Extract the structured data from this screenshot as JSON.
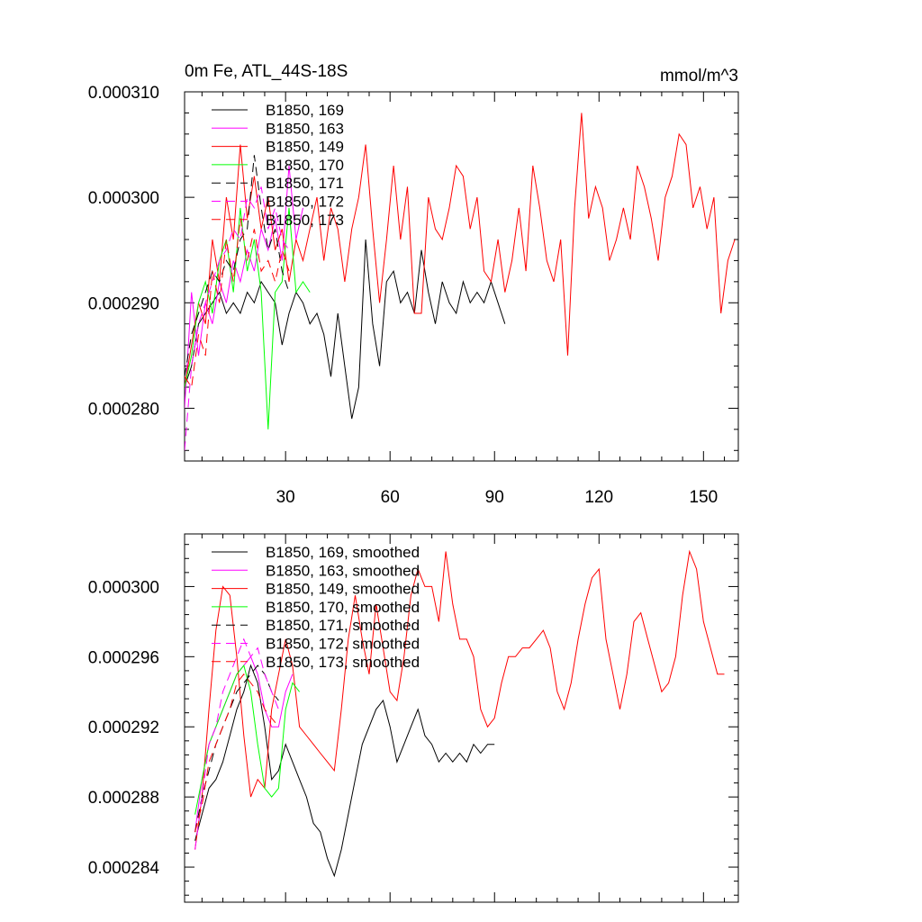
{
  "chart_data": [
    {
      "type": "line",
      "title": "0m Fe, ATL_44S-18S",
      "units": "mmol/m^3",
      "xlabel": "",
      "ylabel": "",
      "xlim": [
        1,
        160
      ],
      "ylim": [
        0.000275,
        0.00031
      ],
      "xticks": [
        30,
        60,
        90,
        120,
        150
      ],
      "xtick_labels": [
        "30",
        "60",
        "90",
        "120",
        "150"
      ],
      "yticks": [
        0.00028,
        0.00029,
        0.0003,
        0.00031
      ],
      "ytick_labels": [
        "0.000280",
        "0.000290",
        "0.000300",
        "0.000310"
      ],
      "legend_position": "top-left",
      "series": [
        {
          "name": "B1850, 169",
          "color": "#000000",
          "dash": "solid",
          "x": [
            1,
            3,
            5,
            7,
            9,
            11,
            13,
            15,
            17,
            19,
            21,
            23,
            25,
            27,
            29,
            31,
            33,
            35,
            37,
            39,
            41,
            43,
            45,
            47,
            49,
            51,
            53,
            55,
            57,
            59,
            61,
            63,
            65,
            67,
            69,
            71,
            73,
            75,
            77,
            79,
            81,
            83,
            85,
            87,
            89,
            91,
            93
          ],
          "values": [
            0.000282,
            0.000284,
            0.000288,
            0.000289,
            0.00029,
            0.000291,
            0.000289,
            0.00029,
            0.000289,
            0.000291,
            0.00029,
            0.000292,
            0.000291,
            0.00029,
            0.000286,
            0.000289,
            0.000291,
            0.00029,
            0.000288,
            0.000289,
            0.000287,
            0.000283,
            0.000289,
            0.000284,
            0.000279,
            0.000282,
            0.000296,
            0.000288,
            0.000284,
            0.000292,
            0.000293,
            0.00029,
            0.000291,
            0.000289,
            0.000295,
            0.000291,
            0.000288,
            0.000292,
            0.00029,
            0.000289,
            0.000292,
            0.00029,
            0.000291,
            0.00029,
            0.000292,
            0.00029,
            0.000288
          ]
        },
        {
          "name": "B1850, 163",
          "color": "#ff00ff",
          "dash": "solid",
          "x": [
            1,
            3,
            5,
            7,
            9,
            11,
            13,
            15,
            17,
            19,
            21,
            23,
            25,
            27,
            29,
            31,
            33,
            35
          ],
          "values": [
            0.00028,
            0.000291,
            0.000285,
            0.00029,
            0.000288,
            0.000292,
            0.00029,
            0.000294,
            0.000292,
            0.000295,
            0.000293,
            0.000297,
            0.000295,
            0.000298,
            0.000294,
            0.000303,
            0.000296,
            0.000299
          ]
        },
        {
          "name": "B1850, 149",
          "color": "#ff0000",
          "dash": "solid",
          "x": [
            1,
            3,
            5,
            7,
            9,
            11,
            13,
            15,
            17,
            19,
            21,
            23,
            25,
            27,
            29,
            31,
            33,
            35,
            37,
            39,
            41,
            43,
            45,
            47,
            49,
            51,
            53,
            55,
            57,
            59,
            61,
            63,
            65,
            67,
            69,
            71,
            73,
            75,
            77,
            79,
            81,
            83,
            85,
            87,
            89,
            91,
            93,
            95,
            97,
            99,
            101,
            103,
            105,
            107,
            109,
            111,
            113,
            115,
            117,
            119,
            121,
            123,
            125,
            127,
            129,
            131,
            133,
            135,
            137,
            139,
            141,
            143,
            145,
            147,
            149,
            151,
            153,
            155,
            157,
            159
          ],
          "values": [
            0.000282,
            0.000286,
            0.00029,
            0.000288,
            0.000296,
            0.000292,
            0.0003,
            0.000296,
            0.000305,
            0.000298,
            0.000302,
            0.000297,
            0.0003,
            0.000295,
            0.000297,
            0.000292,
            0.000296,
            0.000294,
            0.000297,
            0.0003,
            0.000294,
            0.000299,
            0.000297,
            0.000292,
            0.000297,
            0.0003,
            0.000305,
            0.000297,
            0.00029,
            0.000296,
            0.000303,
            0.000296,
            0.000301,
            0.000289,
            0.000289,
            0.0003,
            0.000297,
            0.000296,
            0.000299,
            0.000303,
            0.000302,
            0.000297,
            0.0003,
            0.000293,
            0.000292,
            0.000296,
            0.000291,
            0.000294,
            0.000299,
            0.000293,
            0.000303,
            0.000299,
            0.000294,
            0.000292,
            0.000296,
            0.000285,
            0.000299,
            0.000308,
            0.000298,
            0.000301,
            0.000299,
            0.000294,
            0.000296,
            0.000299,
            0.000296,
            0.000303,
            0.000301,
            0.000298,
            0.000294,
            0.0003,
            0.000302,
            0.000306,
            0.000305,
            0.000299,
            0.000301,
            0.000297,
            0.0003,
            0.000289,
            0.000294,
            0.000296
          ]
        },
        {
          "name": "B1850, 170",
          "color": "#00ff00",
          "dash": "solid",
          "x": [
            1,
            3,
            5,
            7,
            9,
            11,
            13,
            15,
            17,
            19,
            21,
            23,
            25,
            27,
            29,
            31,
            33,
            35,
            37
          ],
          "values": [
            0.000282,
            0.000285,
            0.00029,
            0.000292,
            0.000289,
            0.000294,
            0.000296,
            0.000291,
            0.000299,
            0.000293,
            0.000296,
            0.000291,
            0.000278,
            0.000291,
            0.000292,
            0.000299,
            0.000291,
            0.000292,
            0.000291
          ]
        },
        {
          "name": "B1850, 171",
          "color": "#000000",
          "dash": "dashed",
          "x": [
            1,
            3,
            5,
            7,
            9,
            11,
            13,
            15,
            17,
            19,
            21,
            23,
            25,
            27,
            29,
            31
          ],
          "values": [
            0.000283,
            0.000287,
            0.000289,
            0.000291,
            0.000293,
            0.000292,
            0.000294,
            0.000293,
            0.000296,
            0.000297,
            0.000304,
            0.000299,
            0.000295,
            0.000297,
            0.000293,
            0.000291
          ]
        },
        {
          "name": "B1850, 172",
          "color": "#ff00ff",
          "dash": "dashed",
          "x": [
            1,
            3,
            5,
            7,
            9,
            11,
            13,
            15,
            17,
            19,
            21,
            23,
            25,
            27,
            29,
            31
          ],
          "values": [
            0.000276,
            0.000284,
            0.000288,
            0.00029,
            0.000292,
            0.000294,
            0.000295,
            0.000297,
            0.000296,
            0.0003,
            0.000299,
            0.000301,
            0.000297,
            0.000299,
            0.000296,
            0.000295
          ]
        },
        {
          "name": "B1850, 173",
          "color": "#ff0000",
          "dash": "dashed",
          "x": [
            1,
            3,
            5,
            7,
            9,
            11,
            13,
            15,
            17,
            19,
            21,
            23,
            25,
            27,
            29,
            31
          ],
          "values": [
            0.000283,
            0.000282,
            0.000287,
            0.000285,
            0.000293,
            0.00029,
            0.000296,
            0.000292,
            0.000298,
            0.000294,
            0.000297,
            0.000293,
            0.000294,
            0.000292,
            0.000295,
            0.000293
          ]
        }
      ]
    },
    {
      "type": "line",
      "title": "",
      "xlabel": "",
      "ylabel": "",
      "xlim": [
        1,
        160
      ],
      "ylim": [
        0.000282,
        0.000303
      ],
      "xticks": [
        30,
        60,
        90,
        120,
        150
      ],
      "xtick_labels": [],
      "yticks": [
        0.000284,
        0.000288,
        0.000292,
        0.000296,
        0.0003
      ],
      "ytick_labels": [
        "0.000284",
        "0.000288",
        "0.000292",
        "0.000296",
        "0.000300"
      ],
      "legend_position": "top-left",
      "series": [
        {
          "name": "B1850, 169, smoothed",
          "color": "#000000",
          "dash": "solid",
          "x": [
            4,
            6,
            8,
            10,
            12,
            14,
            16,
            18,
            20,
            22,
            24,
            26,
            28,
            30,
            32,
            34,
            36,
            38,
            40,
            42,
            44,
            46,
            48,
            50,
            52,
            54,
            56,
            58,
            60,
            62,
            64,
            66,
            68,
            70,
            72,
            74,
            76,
            78,
            80,
            82,
            84,
            86,
            88,
            90
          ],
          "values": [
            0.0002855,
            0.000287,
            0.0002885,
            0.000289,
            0.00029,
            0.0002915,
            0.000293,
            0.000294,
            0.0002955,
            0.0002945,
            0.000292,
            0.000289,
            0.0002895,
            0.000291,
            0.00029,
            0.000289,
            0.000288,
            0.0002865,
            0.000286,
            0.0002845,
            0.0002835,
            0.000285,
            0.000287,
            0.000289,
            0.000291,
            0.000292,
            0.000293,
            0.0002935,
            0.000292,
            0.00029,
            0.000291,
            0.000292,
            0.000293,
            0.0002915,
            0.000291,
            0.00029,
            0.0002905,
            0.00029,
            0.0002905,
            0.00029,
            0.000291,
            0.0002905,
            0.000291,
            0.000291
          ]
        },
        {
          "name": "B1850, 163, smoothed",
          "color": "#ff00ff",
          "dash": "solid",
          "x": [
            4,
            6,
            8,
            10,
            12,
            14,
            16,
            18,
            20,
            22,
            24,
            26,
            28,
            30,
            32
          ],
          "values": [
            0.000286,
            0.000289,
            0.000291,
            0.000292,
            0.000293,
            0.000294,
            0.000295,
            0.0002955,
            0.000296,
            0.000295,
            0.000293,
            0.000292,
            0.000292,
            0.000294,
            0.000295
          ]
        },
        {
          "name": "B1850, 149, smoothed",
          "color": "#ff0000",
          "dash": "solid",
          "x": [
            4,
            6,
            8,
            10,
            12,
            14,
            16,
            18,
            20,
            22,
            24,
            26,
            28,
            30,
            32,
            34,
            36,
            38,
            40,
            42,
            44,
            46,
            48,
            50,
            52,
            54,
            56,
            58,
            60,
            62,
            64,
            66,
            68,
            70,
            72,
            74,
            76,
            78,
            80,
            82,
            84,
            86,
            88,
            90,
            92,
            94,
            96,
            98,
            100,
            102,
            104,
            106,
            108,
            110,
            112,
            114,
            116,
            118,
            120,
            122,
            124,
            126,
            128,
            130,
            132,
            134,
            136,
            138,
            140,
            142,
            144,
            146,
            148,
            150,
            152,
            154,
            156
          ],
          "values": [
            0.000285,
            0.000288,
            0.000293,
            0.0002975,
            0.0003,
            0.0002995,
            0.000296,
            0.0002915,
            0.000288,
            0.000289,
            0.0002885,
            0.000293,
            0.000295,
            0.000297,
            0.0002955,
            0.000292,
            0.0002915,
            0.000291,
            0.0002905,
            0.00029,
            0.0002895,
            0.000293,
            0.000297,
            0.0002995,
            0.000297,
            0.000295,
            0.000299,
            0.0002965,
            0.000294,
            0.0002935,
            0.000296,
            0.0002995,
            0.000301,
            0.0003,
            0.0003,
            0.000298,
            0.000302,
            0.000299,
            0.000297,
            0.000297,
            0.000296,
            0.000293,
            0.000292,
            0.0002925,
            0.0002945,
            0.000296,
            0.000296,
            0.0002965,
            0.0002965,
            0.000297,
            0.0002975,
            0.0002965,
            0.000294,
            0.000293,
            0.0002945,
            0.000297,
            0.000299,
            0.0003005,
            0.000301,
            0.000297,
            0.000295,
            0.000293,
            0.000295,
            0.000298,
            0.0002985,
            0.000297,
            0.0002955,
            0.000294,
            0.0002945,
            0.000296,
            0.0002995,
            0.000302,
            0.000301,
            0.000298,
            0.0002965,
            0.000295,
            0.000295
          ]
        },
        {
          "name": "B1850, 170, smoothed",
          "color": "#00ff00",
          "dash": "solid",
          "x": [
            4,
            6,
            8,
            10,
            12,
            14,
            16,
            18,
            20,
            22,
            24,
            26,
            28,
            30,
            32,
            34
          ],
          "values": [
            0.000287,
            0.000289,
            0.000291,
            0.000292,
            0.000293,
            0.000294,
            0.000295,
            0.0002955,
            0.000294,
            0.000291,
            0.0002885,
            0.000288,
            0.0002885,
            0.000293,
            0.0002945,
            0.000294
          ]
        },
        {
          "name": "B1850, 171, smoothed",
          "color": "#000000",
          "dash": "dashed",
          "x": [
            4,
            6,
            8,
            10,
            12,
            14,
            16,
            18,
            20,
            22,
            24,
            26,
            28
          ],
          "values": [
            0.000286,
            0.000288,
            0.0002895,
            0.000291,
            0.000292,
            0.000293,
            0.000294,
            0.0002945,
            0.000295,
            0.0002955,
            0.000295,
            0.000294,
            0.0002935
          ]
        },
        {
          "name": "B1850, 172, smoothed",
          "color": "#ff00ff",
          "dash": "dashed",
          "x": [
            4,
            6,
            8,
            10,
            12,
            14,
            16,
            18,
            20,
            22,
            24,
            26,
            28
          ],
          "values": [
            0.000285,
            0.000288,
            0.000291,
            0.000292,
            0.000294,
            0.000295,
            0.000296,
            0.000297,
            0.000296,
            0.0002965,
            0.000295,
            0.000294,
            0.000293
          ]
        },
        {
          "name": "B1850, 173, smoothed",
          "color": "#ff0000",
          "dash": "dashed",
          "x": [
            4,
            6,
            8,
            10,
            12,
            14,
            16,
            18,
            20,
            22,
            24,
            26,
            28
          ],
          "values": [
            0.000286,
            0.0002875,
            0.00029,
            0.000291,
            0.000292,
            0.000293,
            0.0002945,
            0.000295,
            0.0002945,
            0.000294,
            0.000293,
            0.0002925,
            0.000292
          ]
        }
      ]
    }
  ]
}
